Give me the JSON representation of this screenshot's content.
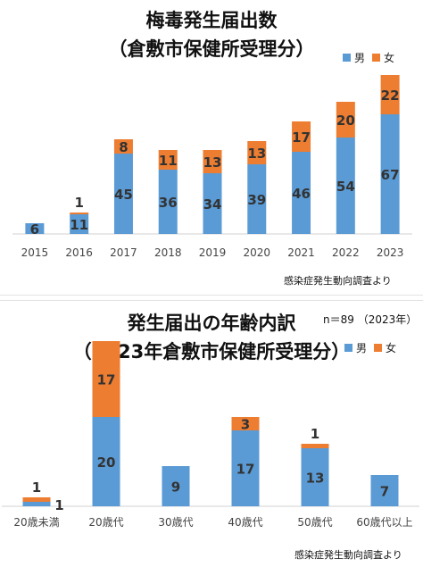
{
  "colors": {
    "male": "#5b9bd5",
    "female": "#ed7d31",
    "axis": "#d0d0d0"
  },
  "chart_data": [
    {
      "type": "bar",
      "stacked": true,
      "title_line1": "梅毒発生届出数",
      "title_line2": "（倉敷市保健所受理分）",
      "legend": [
        "男",
        "女"
      ],
      "legend_position": "top-right",
      "source": "感染症発生動向調査より",
      "categories": [
        "2015",
        "2016",
        "2017",
        "2018",
        "2019",
        "2020",
        "2021",
        "2022",
        "2023"
      ],
      "series": [
        {
          "name": "男",
          "values": [
            6,
            11,
            45,
            36,
            34,
            39,
            46,
            54,
            67
          ]
        },
        {
          "name": "女",
          "values": [
            0,
            1,
            8,
            11,
            13,
            13,
            17,
            20,
            22
          ]
        }
      ],
      "ylim": [
        0,
        100
      ],
      "grid": false
    },
    {
      "type": "bar",
      "stacked": true,
      "title_line1": "発生届出の年齢内訳",
      "title_line2": "（2023年倉敷市保健所受理分）",
      "note": "n＝89 （2023年）",
      "legend": [
        "男",
        "女"
      ],
      "legend_position": "top-right",
      "source": "感染症発生動向調査より",
      "categories": [
        "20歳未満",
        "20歳代",
        "30歳代",
        "40歳代",
        "50歳代",
        "60歳代以上"
      ],
      "series": [
        {
          "name": "男",
          "values": [
            1,
            20,
            9,
            17,
            13,
            7
          ]
        },
        {
          "name": "女",
          "values": [
            1,
            17,
            0,
            3,
            1,
            0
          ]
        }
      ],
      "ylim": [
        0,
        40
      ],
      "grid": false
    }
  ]
}
